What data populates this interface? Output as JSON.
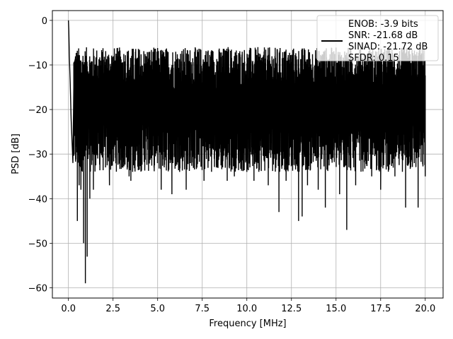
{
  "chart_data": {
    "type": "line",
    "title": "",
    "xlabel": "Frequency [MHz]",
    "ylabel": "PSD [dB]",
    "xlim": [
      -0.9,
      21.0
    ],
    "ylim": [
      -62.3,
      2.2
    ],
    "xticks": [
      0.0,
      2.5,
      5.0,
      7.5,
      10.0,
      12.5,
      15.0,
      17.5,
      20.0
    ],
    "xtick_labels": [
      "0.0",
      "2.5",
      "5.0",
      "7.5",
      "10.0",
      "12.5",
      "15.0",
      "17.5",
      "20.0"
    ],
    "yticks": [
      0,
      -10,
      -20,
      -30,
      -40,
      -50,
      -60
    ],
    "ytick_labels": [
      "0",
      "−10",
      "−20",
      "−30",
      "−40",
      "−50",
      "−60"
    ],
    "grid": true,
    "legend_position": "top-right",
    "legend_lines": [
      "ENOB: -3.9 bits",
      "SNR: -21.68 dB",
      "SINAD: -21.72 dB",
      "SFDR: 0.15"
    ],
    "series": [
      {
        "color": "#000000",
        "noise_band": {
          "x_start": 0.3,
          "x_end": 20.0,
          "upper_db": -11,
          "lower_db": -28
        },
        "points": [
          [
            0.0,
            0.0
          ],
          [
            0.02,
            -2
          ],
          [
            0.05,
            -8
          ],
          [
            0.1,
            -14
          ],
          [
            0.15,
            -22
          ],
          [
            0.2,
            -27
          ],
          [
            0.25,
            -32
          ],
          [
            0.3,
            -15
          ],
          [
            0.5,
            -45
          ],
          [
            0.6,
            -37
          ],
          [
            0.7,
            -38
          ],
          [
            0.85,
            -50
          ],
          [
            0.95,
            -59
          ],
          [
            1.05,
            -53
          ],
          [
            1.2,
            -40
          ],
          [
            1.4,
            -38
          ],
          [
            2.3,
            -37
          ],
          [
            3.4,
            -35
          ],
          [
            3.5,
            -36
          ],
          [
            3.6,
            -34
          ],
          [
            4.8,
            -33
          ],
          [
            5.2,
            -38
          ],
          [
            5.8,
            -39
          ],
          [
            6.6,
            -38
          ],
          [
            7.6,
            -36
          ],
          [
            7.8,
            -7
          ],
          [
            8.3,
            -33
          ],
          [
            8.9,
            -36
          ],
          [
            8.95,
            -6
          ],
          [
            9.3,
            -35
          ],
          [
            10.0,
            -34
          ],
          [
            10.4,
            -36
          ],
          [
            11.2,
            -37
          ],
          [
            11.8,
            -43
          ],
          [
            12.2,
            -36
          ],
          [
            12.9,
            -45
          ],
          [
            13.1,
            -44
          ],
          [
            13.4,
            -37
          ],
          [
            14.0,
            -38
          ],
          [
            14.4,
            -42
          ],
          [
            15.2,
            -39
          ],
          [
            15.6,
            -47
          ],
          [
            16.1,
            -37
          ],
          [
            17.0,
            -35
          ],
          [
            17.5,
            -38
          ],
          [
            18.3,
            -35
          ],
          [
            18.9,
            -42
          ],
          [
            19.6,
            -42
          ],
          [
            20.0,
            -35
          ]
        ]
      }
    ]
  }
}
